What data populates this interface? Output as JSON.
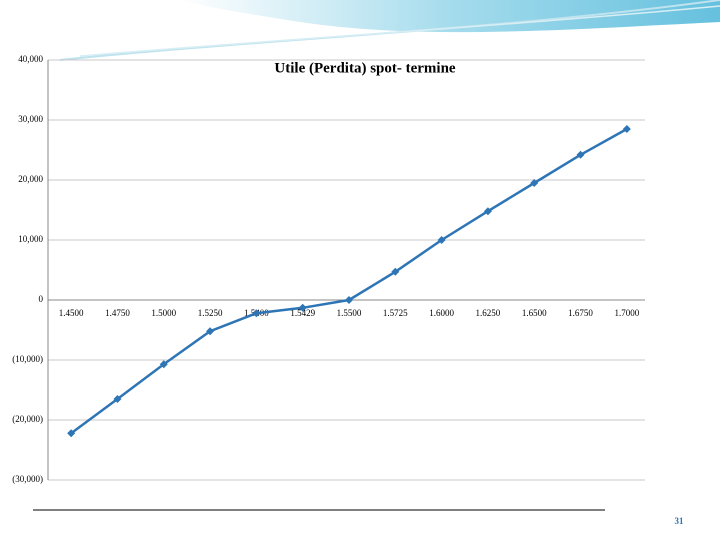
{
  "chart_data": {
    "type": "line",
    "title": "Utile (Perdita) spot- termine",
    "categories": [
      "1.4500",
      "1.4750",
      "1.5000",
      "1.5250",
      "1.5400",
      "1.5429",
      "1.5500",
      "1.5725",
      "1.6000",
      "1.6250",
      "1.6500",
      "1.6750",
      "1.7000"
    ],
    "values": [
      -22200,
      -16500,
      -10700,
      -5200,
      -2200,
      -1300,
      0,
      4700,
      10000,
      14800,
      19500,
      24200,
      28500
    ],
    "color": "#2e75b6",
    "ylim": [
      -30000,
      40000
    ],
    "yticks": [
      {
        "value": -30000,
        "label": "(30,000)"
      },
      {
        "value": -20000,
        "label": "(20,000)"
      },
      {
        "value": -10000,
        "label": "(10,000)"
      },
      0,
      {
        "value": 10000,
        "label": "10,000"
      },
      {
        "value": 20000,
        "label": "20,000"
      },
      {
        "value": 30000,
        "label": "30,000"
      },
      {
        "value": 40000,
        "label": "40,000"
      }
    ],
    "grid": true
  },
  "page_number": "31"
}
